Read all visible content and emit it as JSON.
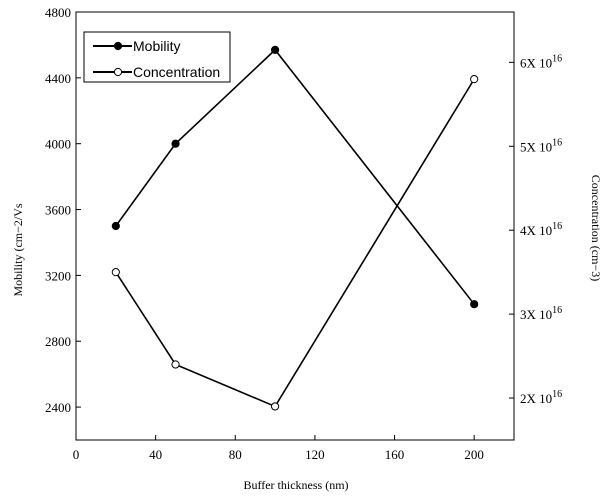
{
  "chart_data": {
    "type": "line",
    "x": [
      20,
      50,
      100,
      200
    ],
    "xlabel": "Buffer thickness (nm)",
    "xlim": [
      0,
      220
    ],
    "xticks": [
      "0",
      "40",
      "80",
      "120",
      "160",
      "200"
    ],
    "ylabel_left": "Mobility (cm−2/Vs",
    "ylim_left": [
      2200,
      4800
    ],
    "yticks_left": [
      "2400",
      "2800",
      "3200",
      "3600",
      "4000",
      "4400",
      "4800"
    ],
    "ylabel_right": "Concentration (cm−3)",
    "ylim_right": [
      1.5,
      6.6
    ],
    "yticks_right": [
      {
        "value": 2,
        "base": "2X 10",
        "exp": "16"
      },
      {
        "value": 3,
        "base": "3X 10",
        "exp": "16"
      },
      {
        "value": 4,
        "base": "4X 10",
        "exp": "16"
      },
      {
        "value": 5,
        "base": "5X 10",
        "exp": "16"
      },
      {
        "value": 6,
        "base": "6X 10",
        "exp": "16"
      }
    ],
    "right_axis_multiplier": "1e16",
    "series": [
      {
        "name": "Mobility",
        "axis": "left",
        "marker": "filled-circle",
        "values": [
          3500,
          4000,
          4570,
          3025
        ]
      },
      {
        "name": "Concentration",
        "axis": "right",
        "marker": "open-circle",
        "values": [
          3.5,
          2.4,
          1.9,
          5.8
        ]
      }
    ],
    "legend": {
      "position": "top-left",
      "entries": [
        "Mobility",
        "Concentration"
      ]
    },
    "grid": false
  }
}
